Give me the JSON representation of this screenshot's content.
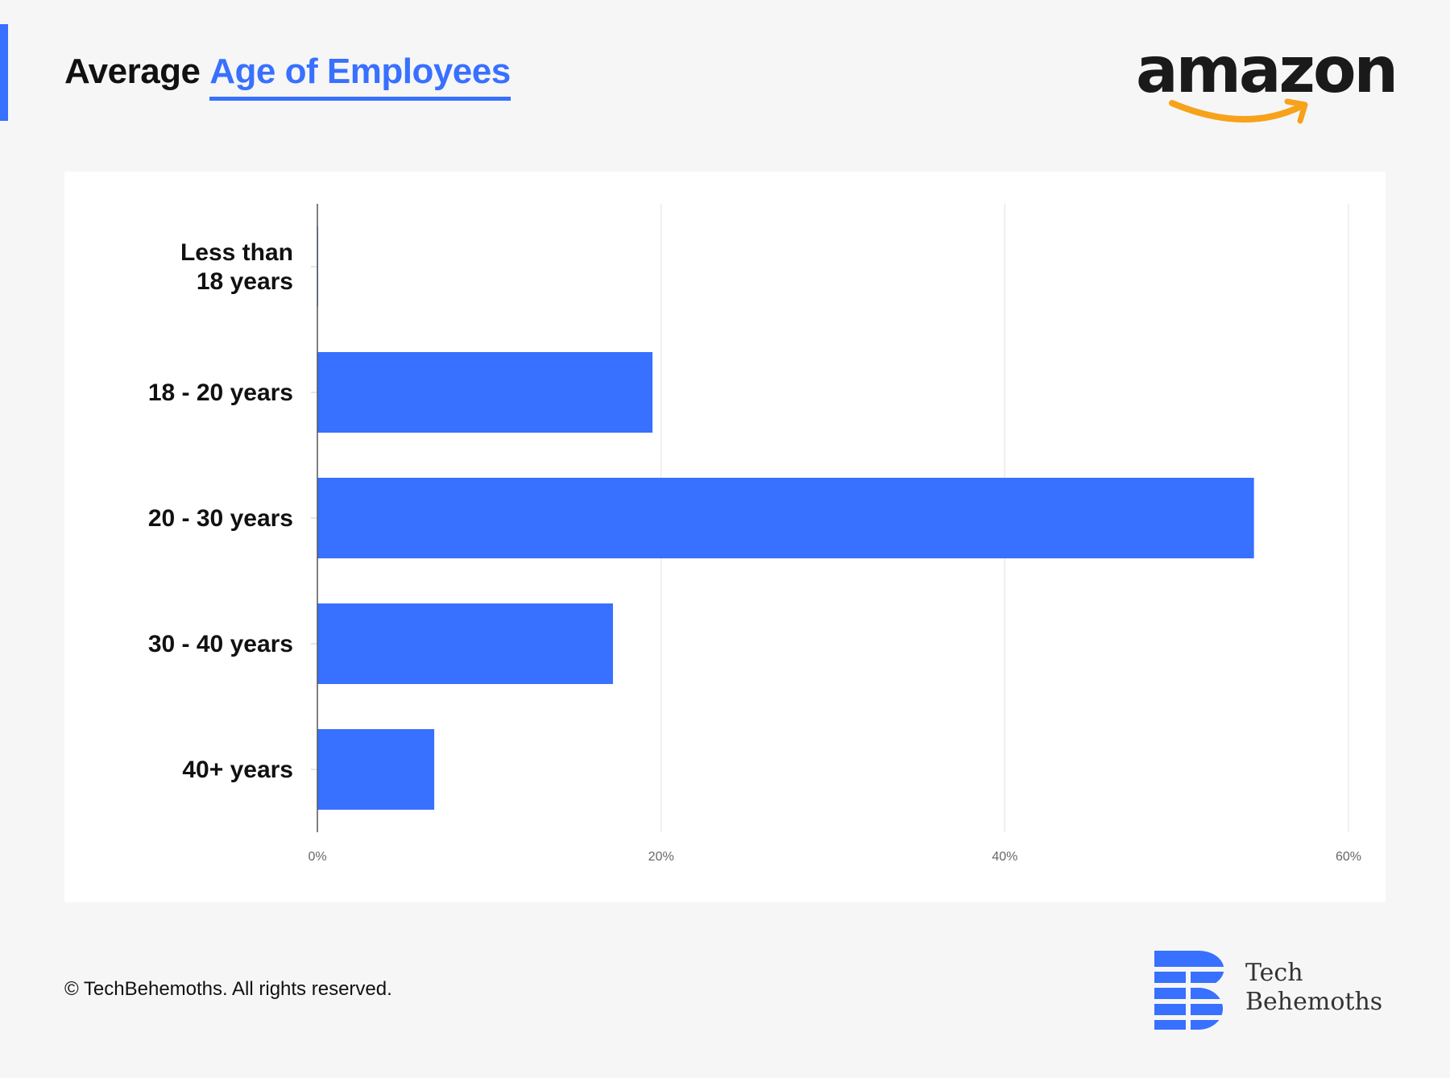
{
  "header": {
    "title_prefix": "Average",
    "title_highlight": "Age of Employees"
  },
  "brand_logo": {
    "text": "amazon",
    "icon": "amazon-smile-arrow-icon"
  },
  "colors": {
    "accent": "#3870ff",
    "bar": "#3870ff",
    "amazon_arrow": "#f7a21b",
    "background": "#f6f6f6"
  },
  "chart_data": {
    "type": "bar",
    "orientation": "horizontal",
    "title": "Average Age of Employees",
    "categories": [
      "Less than\n18 years",
      "18 - 20 years",
      "20 - 30 years",
      "30 - 40 years",
      "40+ years"
    ],
    "values": [
      0,
      19.5,
      54.5,
      17.2,
      6.8
    ],
    "xlim": [
      0,
      60
    ],
    "xticks": [
      0,
      20,
      40,
      60
    ],
    "xtick_labels": [
      "0%",
      "20%",
      "40%",
      "60%"
    ],
    "xlabel": "",
    "ylabel": "",
    "grid": true,
    "legend": "none"
  },
  "footer": {
    "copyright": "© TechBehemoths. All rights reserved.",
    "brand_line1": "Tech",
    "brand_line2": "Behemoths",
    "brand_icon": "techbehemoths-logo-icon"
  }
}
